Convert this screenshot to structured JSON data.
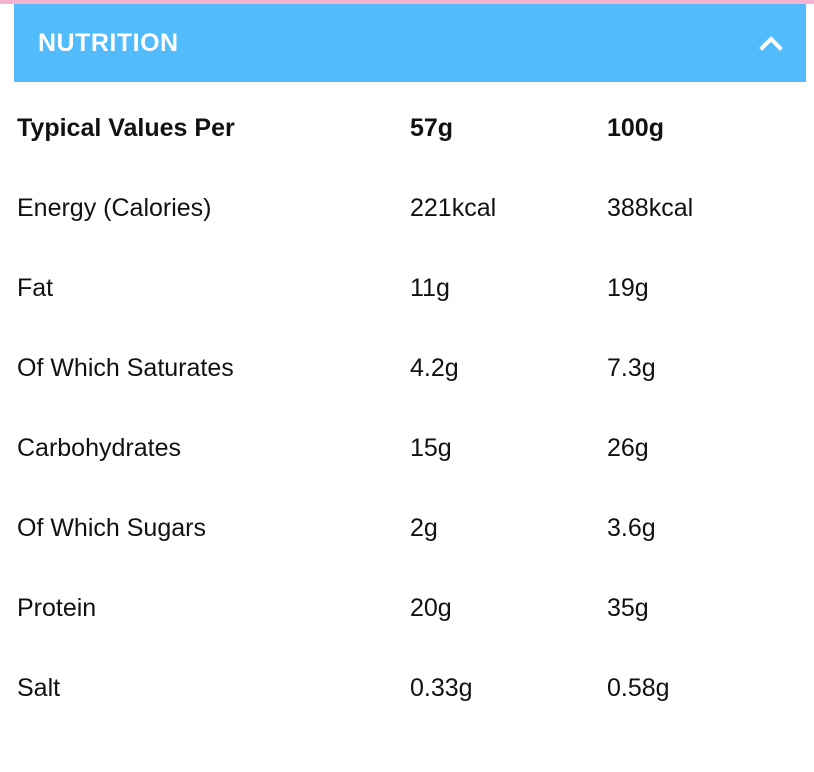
{
  "accordion": {
    "title": "NUTRITION",
    "toggle_icon": "chevron-up-icon",
    "colors": {
      "header_bg": "#52bbfb",
      "top_strip": "#f4b3cf",
      "header_text": "#ffffff"
    }
  },
  "table": {
    "header": [
      "Typical Values Per",
      "57g",
      "100g"
    ],
    "rows": [
      [
        "Energy (Calories)",
        "221kcal",
        "388kcal"
      ],
      [
        "Fat",
        "11g",
        "19g"
      ],
      [
        "Of Which Saturates",
        "4.2g",
        "7.3g"
      ],
      [
        "Carbohydrates",
        "15g",
        "26g"
      ],
      [
        "Of Which Sugars",
        "2g",
        "3.6g"
      ],
      [
        "Protein",
        "20g",
        "35g"
      ],
      [
        "Salt",
        "0.33g",
        "0.58g"
      ]
    ]
  }
}
